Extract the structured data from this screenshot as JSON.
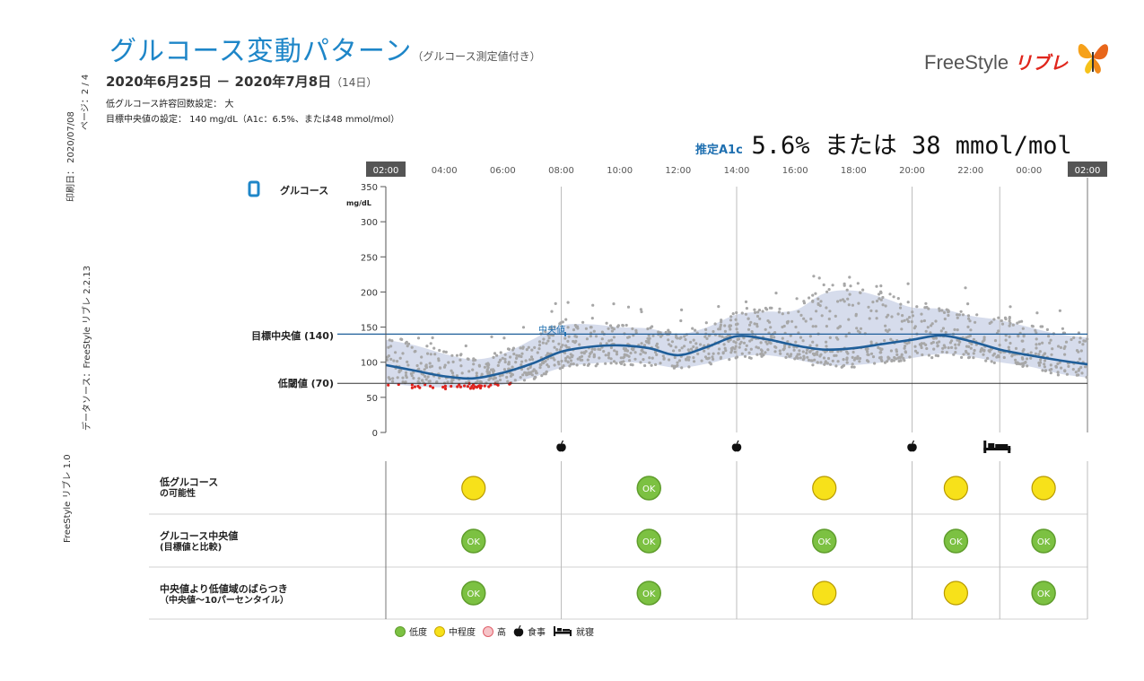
{
  "header": {
    "title": "グルコース変動パターン",
    "title_sub": "（グルコース測定値付き）",
    "date_range": "2020年6月25日 － 2020年7月8日",
    "date_days": "（14日）",
    "low_glucose_setting": "低グルコース許容回数設定： 大",
    "target_setting": "目標中央値の設定： 140 mg/dL（A1c：6.5%、または48 mmol/mol）",
    "estimated_a1c_label": "推定A1c",
    "estimated_a1c_value": "5.6% または 38 mmol/mol"
  },
  "logo": {
    "brand": "FreeStyle",
    "product": "リブレ"
  },
  "side": {
    "page": "ページ：2 / 4",
    "print_date": "印刷日： 2020/07/08",
    "data_source": "データソース：FreeStyle リブレ 2.2.13",
    "data_source_2": "FreeStyle リブレ 1.0"
  },
  "chart_data": {
    "type": "line",
    "title": "グルコース変動パターン",
    "series_label": "グルコース",
    "y_unit": "mg/dL",
    "ylim": [
      0,
      350
    ],
    "y_ticks": [
      0,
      50,
      100,
      150,
      200,
      250,
      300,
      350
    ],
    "x_ticks": [
      "02:00",
      "04:00",
      "06:00",
      "08:00",
      "10:00",
      "12:00",
      "14:00",
      "16:00",
      "18:00",
      "20:00",
      "22:00",
      "00:00",
      "02:00"
    ],
    "x_hours": [
      0,
      24
    ],
    "target_line": {
      "label": "目標中央値 (140)",
      "value": 140
    },
    "low_line": {
      "label": "低閾値 (70)",
      "value": 70
    },
    "median_marker_label": "中央値",
    "median": {
      "x": [
        0,
        1,
        2,
        3,
        4,
        5,
        6,
        7,
        8,
        9,
        10,
        11,
        12,
        13,
        14,
        15,
        16,
        17,
        18,
        19,
        20,
        21,
        22,
        23,
        24
      ],
      "y": [
        96,
        88,
        80,
        77,
        85,
        98,
        115,
        122,
        124,
        120,
        110,
        122,
        137,
        133,
        124,
        118,
        120,
        126,
        132,
        138,
        130,
        118,
        110,
        103,
        97
      ]
    },
    "band_low": [
      70,
      66,
      64,
      64,
      68,
      78,
      92,
      98,
      100,
      98,
      92,
      98,
      108,
      110,
      104,
      96,
      96,
      100,
      106,
      112,
      108,
      100,
      94,
      84,
      78
    ],
    "band_high": [
      132,
      124,
      112,
      104,
      112,
      132,
      152,
      154,
      150,
      148,
      140,
      150,
      168,
      172,
      174,
      198,
      202,
      192,
      178,
      176,
      166,
      160,
      150,
      140,
      135
    ],
    "meals": [
      6,
      12,
      18
    ],
    "sleep": [
      21
    ],
    "periods_hours": [
      0,
      6,
      12,
      18,
      21,
      26
    ],
    "grid_verticals_hours": [
      6,
      12,
      18,
      21
    ],
    "rows": [
      {
        "label": "低グルコース",
        "label2": "の可能性",
        "levels": [
          "medium",
          "low",
          "medium",
          "medium",
          "medium"
        ]
      },
      {
        "label": "グルコース中央値",
        "label2": "(目標値と比較)",
        "levels": [
          "low",
          "low",
          "low",
          "low",
          "low"
        ]
      },
      {
        "label": "中央値より低値域のばらつき",
        "label2": "（中央値〜10パーセンタイル）",
        "levels": [
          "low",
          "low",
          "medium",
          "medium",
          "low"
        ]
      }
    ],
    "ok_text": "OK"
  },
  "legend": {
    "low": "低度",
    "medium": "中程度",
    "high": "高",
    "meal": "食事",
    "sleep": "就寝"
  },
  "colors": {
    "title": "#1e86c8",
    "median_line": "#1f5e99",
    "band": "#d6dcec",
    "dots": "#a7a7a7",
    "low_dots": "#e0231e",
    "ok_green": "#7cc142",
    "medium_yellow": "#f7e11a",
    "high_red": "#f39aa0"
  }
}
